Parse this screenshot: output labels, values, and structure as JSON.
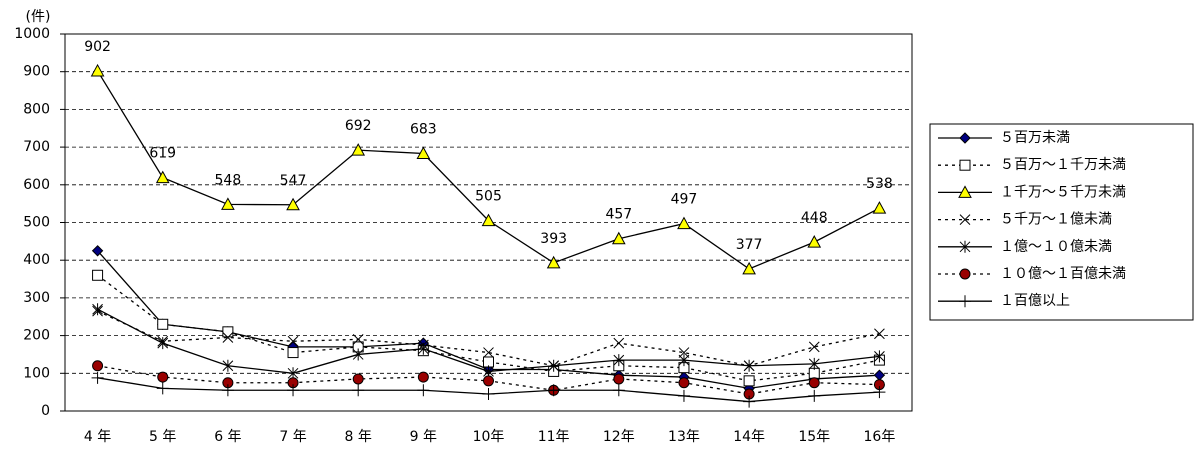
{
  "chart_data": {
    "type": "line",
    "y_unit": "(件)",
    "categories": [
      "4 年",
      "5 年",
      "6 年",
      "7 年",
      "8 年",
      "9 年",
      "10年",
      "11年",
      "12年",
      "13年",
      "14年",
      "15年",
      "16年"
    ],
    "ylim": [
      0,
      1000
    ],
    "yticks": [
      0,
      100,
      200,
      300,
      400,
      500,
      600,
      700,
      800,
      900,
      1000
    ],
    "grid": true,
    "legend": "right",
    "series": [
      {
        "name": "５百万未満",
        "color": "#000080",
        "marker": "diamond",
        "dash": "solid",
        "values": [
          425,
          230,
          210,
          170,
          170,
          180,
          110,
          110,
          95,
          90,
          60,
          85,
          95
        ]
      },
      {
        "name": "５百万～１千万未満",
        "color": "#ffffff",
        "marker": "square",
        "dash": "dotted",
        "values": [
          360,
          230,
          210,
          155,
          170,
          160,
          130,
          105,
          120,
          115,
          80,
          100,
          135
        ]
      },
      {
        "name": "１千万～５千万未満",
        "color": "#ffff00",
        "marker": "triangle",
        "dash": "solid",
        "show_values": true,
        "values": [
          902,
          619,
          548,
          547,
          692,
          683,
          505,
          393,
          457,
          497,
          377,
          448,
          538
        ]
      },
      {
        "name": "５千万～１億未満",
        "color": "#000000",
        "marker": "x",
        "dash": "dotted",
        "values": [
          265,
          185,
          195,
          185,
          190,
          175,
          155,
          120,
          180,
          155,
          120,
          170,
          205
        ]
      },
      {
        "name": "１億～１０億未満",
        "color": "#000000",
        "marker": "asterisk",
        "dash": "solid",
        "values": [
          270,
          180,
          120,
          100,
          150,
          165,
          105,
          120,
          135,
          135,
          120,
          125,
          145
        ]
      },
      {
        "name": "１０億～１百億未満",
        "color": "#990000",
        "marker": "circle",
        "dash": "dotted",
        "values": [
          120,
          90,
          75,
          75,
          85,
          90,
          80,
          55,
          85,
          75,
          45,
          75,
          70
        ]
      },
      {
        "name": "１百億以上",
        "color": "#000000",
        "marker": "plus",
        "dash": "solid",
        "values": [
          88,
          60,
          55,
          55,
          55,
          55,
          45,
          55,
          55,
          40,
          25,
          40,
          50
        ]
      }
    ]
  }
}
